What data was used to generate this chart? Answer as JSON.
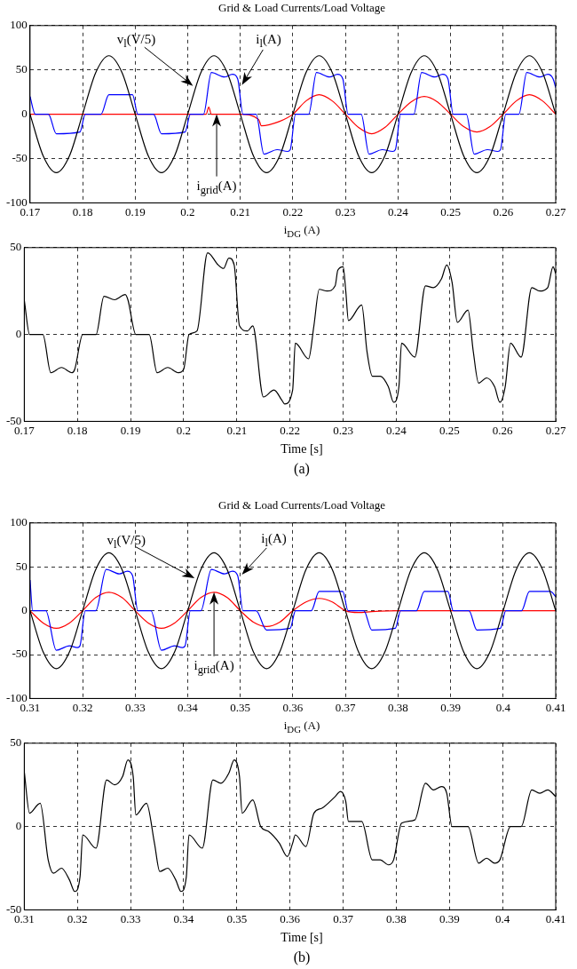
{
  "chart_data": [
    {
      "type": "line",
      "title": "Grid & Load Currents/Load Voltage",
      "xlim": [
        0.17,
        0.27
      ],
      "xticks": [
        0.17,
        0.18,
        0.19,
        0.2,
        0.21,
        0.22,
        0.23,
        0.24,
        0.25,
        0.26,
        0.27
      ],
      "ylim": [
        -100,
        100
      ],
      "yticks": [
        -100,
        -50,
        0,
        50,
        100
      ],
      "grid": true,
      "series": [
        {
          "color": "#000000",
          "x": [
            0.17,
            0.1725,
            0.175,
            0.1775,
            0.18,
            0.1825,
            0.185,
            0.1875,
            0.19,
            0.1925,
            0.195,
            0.1975,
            0.2,
            0.2025,
            0.205,
            0.2075,
            0.21,
            0.2125,
            0.215,
            0.2175,
            0.22,
            0.2225,
            0.225,
            0.2275,
            0.23,
            0.2325,
            0.235,
            0.2375,
            0.24,
            0.2425,
            0.245,
            0.2475,
            0.25,
            0.2525,
            0.255,
            0.2575,
            0.26,
            0.2625,
            0.265,
            0.2675,
            0.27
          ],
          "values": [
            0,
            -47,
            -66,
            -47,
            0,
            47,
            66,
            47,
            0,
            -47,
            -66,
            -47,
            0,
            47,
            66,
            47,
            0,
            -47,
            -66,
            -47,
            0,
            47,
            66,
            47,
            0,
            -47,
            -66,
            -47,
            0,
            47,
            66,
            47,
            0,
            -47,
            -66,
            -47,
            0,
            47,
            66,
            47,
            0
          ]
        },
        {
          "color": "#0000ff",
          "x": [
            0.17,
            0.171,
            0.1735,
            0.175,
            0.1795,
            0.1805,
            0.1835,
            0.185,
            0.1895,
            0.1905,
            0.1935,
            0.195,
            0.1995,
            0.2005,
            0.203,
            0.2045,
            0.207,
            0.2085,
            0.2095,
            0.2105,
            0.213,
            0.2145,
            0.217,
            0.219,
            0.2195,
            0.2205,
            0.223,
            0.2245,
            0.227,
            0.2285,
            0.2295,
            0.2305,
            0.233,
            0.2345,
            0.237,
            0.239,
            0.2395,
            0.2405,
            0.243,
            0.2445,
            0.247,
            0.2485,
            0.2495,
            0.2505,
            0.253,
            0.2545,
            0.257,
            0.259,
            0.2595,
            0.2605,
            0.263,
            0.2645,
            0.267,
            0.2685,
            0.2695,
            0.27
          ],
          "values": [
            20,
            0,
            0,
            -22,
            -20,
            0,
            0,
            22,
            22,
            0,
            0,
            -22,
            -20,
            0,
            0,
            47,
            42,
            45,
            40,
            0,
            0,
            -45,
            -40,
            -42,
            -40,
            0,
            0,
            47,
            42,
            45,
            40,
            0,
            0,
            -45,
            -40,
            -42,
            -40,
            0,
            0,
            47,
            42,
            45,
            40,
            0,
            0,
            -45,
            -40,
            -42,
            -40,
            0,
            0,
            47,
            42,
            45,
            40,
            30
          ]
        },
        {
          "color": "#ff0000",
          "x": [
            0.17,
            0.2035,
            0.204,
            0.2045,
            0.21,
            0.2135,
            0.214,
            0.2175,
            0.22,
            0.2225,
            0.225,
            0.2275,
            0.23,
            0.2325,
            0.235,
            0.2375,
            0.24,
            0.2425,
            0.245,
            0.2475,
            0.25,
            0.2525,
            0.255,
            0.2575,
            0.26,
            0.2625,
            0.265,
            0.2675,
            0.27
          ],
          "values": [
            0,
            0,
            8,
            0,
            0,
            -6,
            -13,
            -8,
            0,
            15,
            22,
            15,
            0,
            -15,
            -22,
            -15,
            0,
            14,
            20,
            14,
            0,
            -14,
            -20,
            -14,
            0,
            15,
            22,
            15,
            0
          ]
        }
      ],
      "annotations": [
        {
          "text": "v$_{l}$(V/5)",
          "x": 0.201,
          "y": 32
        },
        {
          "text": "i$_{l}$(A)",
          "x": 0.2103,
          "y": 33
        },
        {
          "text": "i$_{grid}$(A)",
          "x": 0.2055,
          "y": 0
        }
      ]
    },
    {
      "type": "line",
      "title": "i$_{DG}$ (A)",
      "xlabel": "Time [s]",
      "xlim": [
        0.17,
        0.27
      ],
      "xticks": [
        0.17,
        0.18,
        0.19,
        0.2,
        0.21,
        0.22,
        0.23,
        0.24,
        0.25,
        0.26,
        0.27
      ],
      "ylim": [
        -50,
        50
      ],
      "yticks": [
        -50,
        0,
        50
      ],
      "grid": true,
      "series": [
        {
          "color": "#000000",
          "x": [
            0.17,
            0.171,
            0.1735,
            0.175,
            0.177,
            0.179,
            0.1795,
            0.181,
            0.1835,
            0.185,
            0.187,
            0.189,
            0.1895,
            0.191,
            0.1935,
            0.195,
            0.197,
            0.199,
            0.2,
            0.201,
            0.2025,
            0.2045,
            0.2065,
            0.2075,
            0.2085,
            0.2095,
            0.2105,
            0.212,
            0.213,
            0.215,
            0.217,
            0.2185,
            0.219,
            0.2205,
            0.221,
            0.2235,
            0.2245,
            0.2255,
            0.227,
            0.2285,
            0.229,
            0.23,
            0.2305,
            0.231,
            0.2335,
            0.2345,
            0.2355,
            0.237,
            0.2385,
            0.2395,
            0.2405,
            0.241,
            0.2435,
            0.2455,
            0.247,
            0.2485,
            0.2495,
            0.2505,
            0.2515,
            0.2535,
            0.2545,
            0.2555,
            0.257,
            0.2585,
            0.2595,
            0.2605,
            0.2615,
            0.2635,
            0.2655,
            0.267,
            0.2685,
            0.2695,
            0.27
          ],
          "values": [
            20,
            0,
            0,
            -22,
            -19,
            -22,
            -20,
            0,
            0,
            22,
            20,
            23,
            20,
            0,
            0,
            -22,
            -19,
            -22,
            -20,
            0,
            2,
            47,
            40,
            38,
            44,
            40,
            5,
            2,
            5,
            -36,
            -32,
            -38,
            -40,
            -32,
            -5,
            -14,
            5,
            26,
            25,
            28,
            37,
            39,
            25,
            8,
            17,
            -10,
            -24,
            -24,
            -30,
            -39,
            -30,
            -5,
            -13,
            28,
            27,
            32,
            40,
            30,
            7,
            14,
            -10,
            -28,
            -25,
            -30,
            -39,
            -30,
            -5,
            -13,
            27,
            25,
            27,
            39,
            35
          ]
        }
      ],
      "annotations": [
        "(a)"
      ]
    },
    {
      "type": "line",
      "title": "Grid & Load Currents/Load Voltage",
      "xlim": [
        0.31,
        0.41
      ],
      "xticks": [
        0.31,
        0.32,
        0.33,
        0.34,
        0.35,
        0.36,
        0.37,
        0.38,
        0.39,
        0.4,
        0.41
      ],
      "ylim": [
        -100,
        100
      ],
      "yticks": [
        -100,
        -50,
        0,
        50,
        100
      ],
      "grid": true,
      "series": [
        {
          "color": "#000000",
          "x": [
            0.31,
            0.3125,
            0.315,
            0.3175,
            0.32,
            0.3225,
            0.325,
            0.3275,
            0.33,
            0.3325,
            0.335,
            0.3375,
            0.34,
            0.3425,
            0.345,
            0.3475,
            0.35,
            0.3525,
            0.355,
            0.3575,
            0.36,
            0.3625,
            0.365,
            0.3675,
            0.37,
            0.3725,
            0.375,
            0.3775,
            0.38,
            0.3825,
            0.385,
            0.3875,
            0.39,
            0.3925,
            0.395,
            0.3975,
            0.4,
            0.4025,
            0.405,
            0.4075,
            0.41
          ],
          "values": [
            0,
            -47,
            -66,
            -47,
            0,
            47,
            66,
            47,
            0,
            -47,
            -66,
            -47,
            0,
            47,
            66,
            47,
            0,
            -47,
            -66,
            -47,
            0,
            47,
            66,
            47,
            0,
            -47,
            -66,
            -47,
            0,
            47,
            66,
            47,
            0,
            -47,
            -66,
            -47,
            0,
            47,
            66,
            47,
            0
          ]
        },
        {
          "color": "#0000ff",
          "x": [
            0.31,
            0.3105,
            0.313,
            0.315,
            0.3175,
            0.319,
            0.3195,
            0.3205,
            0.3225,
            0.3245,
            0.327,
            0.3285,
            0.3295,
            0.3305,
            0.333,
            0.335,
            0.3375,
            0.339,
            0.3395,
            0.3405,
            0.3425,
            0.3445,
            0.347,
            0.3485,
            0.3495,
            0.3505,
            0.353,
            0.355,
            0.3595,
            0.3605,
            0.3635,
            0.365,
            0.3695,
            0.3705,
            0.3735,
            0.375,
            0.3795,
            0.3805,
            0.3835,
            0.385,
            0.3895,
            0.3905,
            0.3935,
            0.395,
            0.3995,
            0.4005,
            0.4035,
            0.405,
            0.409,
            0.41
          ],
          "values": [
            35,
            0,
            0,
            -45,
            -40,
            -42,
            -40,
            0,
            0,
            47,
            42,
            45,
            40,
            0,
            0,
            -45,
            -40,
            -42,
            -40,
            0,
            0,
            47,
            42,
            45,
            40,
            0,
            0,
            -22,
            -20,
            0,
            0,
            22,
            22,
            0,
            0,
            -22,
            -20,
            0,
            0,
            22,
            22,
            0,
            0,
            -22,
            -20,
            0,
            0,
            22,
            22,
            16
          ]
        },
        {
          "color": "#ff0000",
          "x": [
            0.31,
            0.3125,
            0.315,
            0.3175,
            0.32,
            0.3225,
            0.325,
            0.3275,
            0.33,
            0.3325,
            0.335,
            0.3375,
            0.34,
            0.3425,
            0.345,
            0.3475,
            0.35,
            0.3525,
            0.355,
            0.3575,
            0.36,
            0.3625,
            0.365,
            0.3675,
            0.37,
            0.3725,
            0.375,
            0.38,
            0.39,
            0.4,
            0.41
          ],
          "values": [
            0,
            -14,
            -20,
            -14,
            0,
            15,
            21,
            15,
            0,
            -14,
            -20,
            -14,
            0,
            15,
            21,
            15,
            0,
            -13,
            -18,
            -13,
            0,
            10,
            14,
            10,
            0,
            -2,
            -1,
            0,
            0,
            0,
            0
          ]
        }
      ],
      "annotations": [
        {
          "text": "v$_{l}$(V/5)",
          "x": 0.3413,
          "y": 37
        },
        {
          "text": "i$_{l}$(A)",
          "x": 0.3503,
          "y": 41
        },
        {
          "text": "i$_{grid}$(A)",
          "x": 0.345,
          "y": 21
        }
      ]
    },
    {
      "type": "line",
      "title": "i$_{DG}$ (A)",
      "xlabel": "Time [s]",
      "xlim": [
        0.31,
        0.41
      ],
      "xticks": [
        0.31,
        0.32,
        0.33,
        0.34,
        0.35,
        0.36,
        0.37,
        0.38,
        0.39,
        0.4,
        0.41
      ],
      "ylim": [
        -50,
        50
      ],
      "yticks": [
        -50,
        0,
        50
      ],
      "grid": true,
      "series": [
        {
          "color": "#000000",
          "x": [
            0.31,
            0.311,
            0.3125,
            0.313,
            0.3145,
            0.3155,
            0.317,
            0.3185,
            0.3195,
            0.3205,
            0.321,
            0.3235,
            0.3255,
            0.327,
            0.3285,
            0.3295,
            0.3305,
            0.331,
            0.333,
            0.3345,
            0.3355,
            0.337,
            0.3385,
            0.3395,
            0.3405,
            0.341,
            0.3435,
            0.3455,
            0.347,
            0.3485,
            0.3495,
            0.3505,
            0.351,
            0.353,
            0.3545,
            0.356,
            0.358,
            0.3595,
            0.3605,
            0.361,
            0.363,
            0.3645,
            0.366,
            0.3685,
            0.3695,
            0.3705,
            0.371,
            0.3735,
            0.3755,
            0.377,
            0.3785,
            0.3795,
            0.381,
            0.3835,
            0.3855,
            0.387,
            0.3885,
            0.3895,
            0.3905,
            0.3935,
            0.3955,
            0.397,
            0.3985,
            0.3995,
            0.4015,
            0.4035,
            0.4055,
            0.407,
            0.4085,
            0.41
          ],
          "values": [
            33,
            8,
            13,
            14,
            -20,
            -28,
            -25,
            -32,
            -39,
            -30,
            -5,
            -13,
            28,
            25,
            30,
            40,
            30,
            7,
            14,
            -10,
            -27,
            -25,
            -32,
            -39,
            -30,
            -5,
            -13,
            28,
            26,
            32,
            40,
            30,
            8,
            16,
            0,
            -3,
            -10,
            -18,
            -10,
            -5,
            -12,
            8,
            11,
            18,
            21,
            15,
            3,
            3,
            -20,
            -20,
            -23,
            -20,
            2,
            4,
            26,
            22,
            24,
            20,
            0,
            0,
            -22,
            -19,
            -22,
            -20,
            0,
            0,
            22,
            20,
            22,
            18
          ]
        }
      ],
      "annotations": [
        "(b)"
      ]
    }
  ]
}
